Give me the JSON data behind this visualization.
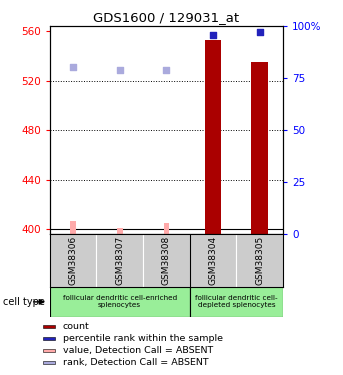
{
  "title": "GDS1600 / 129031_at",
  "samples": [
    "GSM38306",
    "GSM38307",
    "GSM38308",
    "GSM38304",
    "GSM38305"
  ],
  "ylim_left": [
    396,
    564
  ],
  "ylim_right": [
    0,
    100
  ],
  "yticks_left": [
    400,
    440,
    480,
    520,
    560
  ],
  "yticks_right": [
    0,
    25,
    50,
    75,
    100
  ],
  "bar_values": [
    null,
    null,
    null,
    553,
    535
  ],
  "bar_color": "#aa0000",
  "rank_values": [
    null,
    null,
    null,
    96,
    97
  ],
  "rank_color": "#2222bb",
  "absent_value_bars": [
    406.5,
    401.0,
    405.0,
    null,
    null
  ],
  "absent_value_color": "#ffaaaa",
  "absent_rank_dots": [
    531,
    529,
    529,
    null,
    null
  ],
  "absent_rank_color": "#aaaadd",
  "absent_dot_size": 18,
  "cell_group1_color": "#99ee99",
  "cell_group2_color": "#99ee99",
  "cell_group1_label": "follicular dendritic cell-enriched\nsplenocytes",
  "cell_group2_label": "follicular dendritic cell-\ndepleted splenocytes",
  "legend_items": [
    {
      "label": "count",
      "color": "#aa0000"
    },
    {
      "label": "percentile rank within the sample",
      "color": "#2222bb"
    },
    {
      "label": "value, Detection Call = ABSENT",
      "color": "#ffaaaa"
    },
    {
      "label": "rank, Detection Call = ABSENT",
      "color": "#aaaadd"
    }
  ],
  "grid_color": "black",
  "background_color": "#ffffff",
  "bar_width": 0.35,
  "absent_bar_width": 0.12
}
